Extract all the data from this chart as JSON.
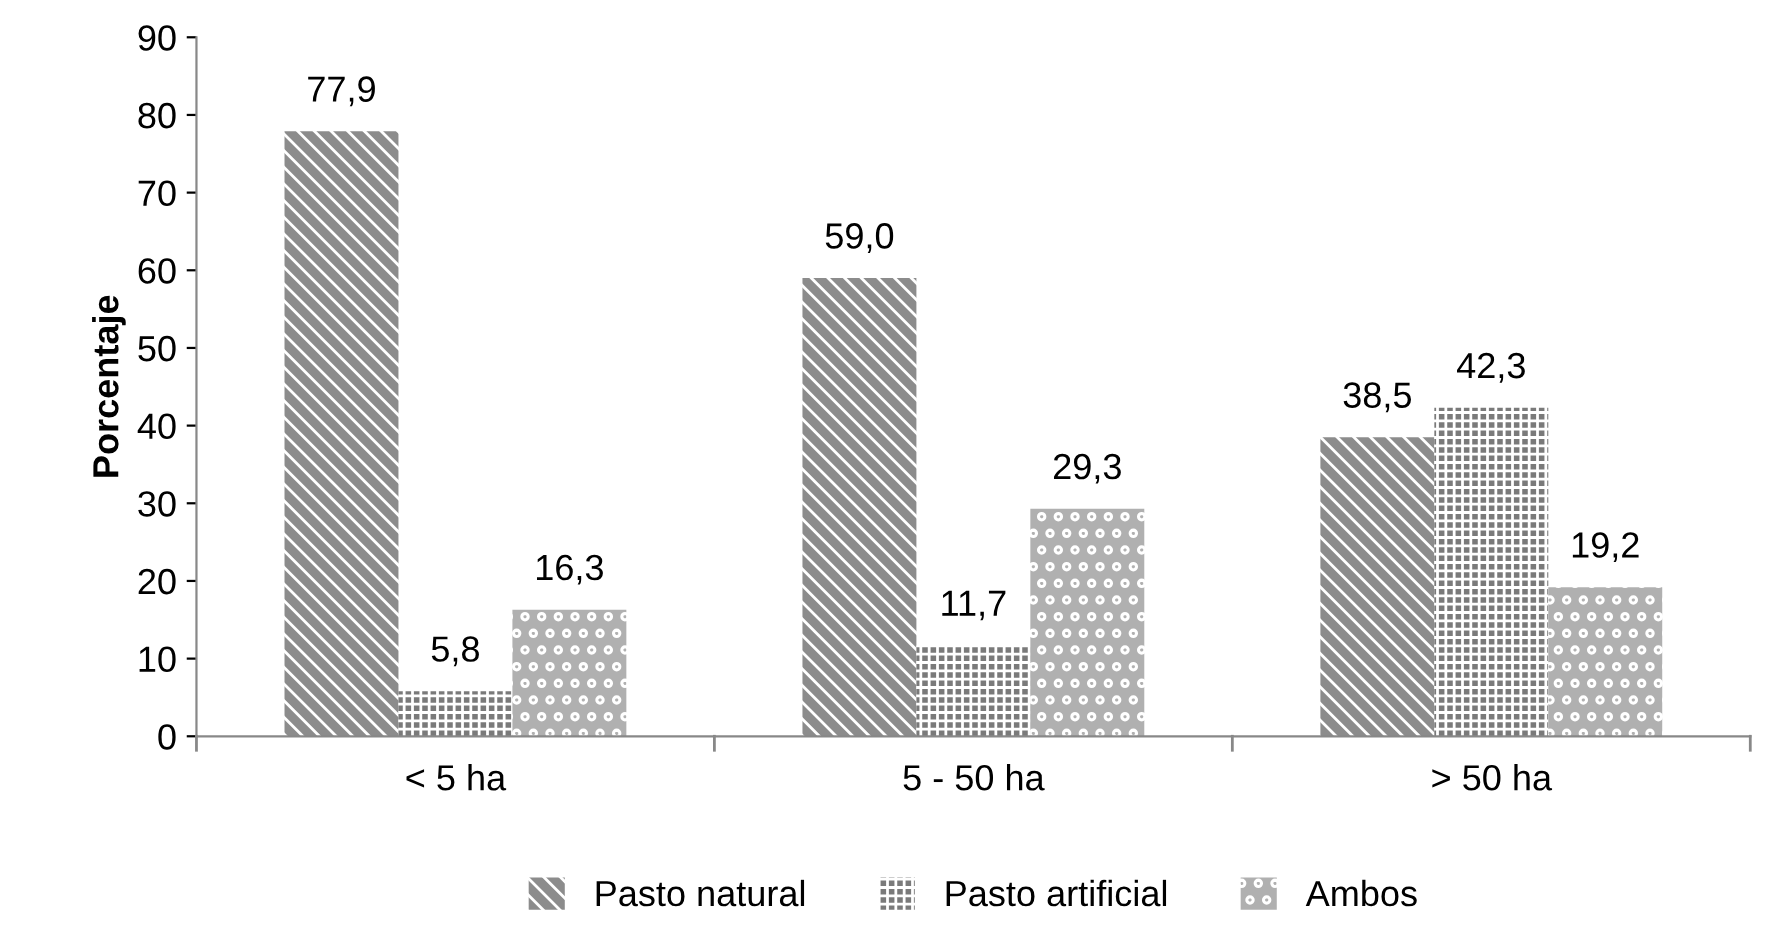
{
  "chart_data": {
    "type": "bar",
    "ylabel": "Porcentaje",
    "categories": [
      "< 5 ha",
      "5 - 50 ha",
      "> 50 ha"
    ],
    "series": [
      {
        "name": "Pasto natural",
        "color": "#8c8c8c",
        "values": [
          77.9,
          59.0,
          38.5
        ],
        "value_labels": [
          "77,9",
          "59,0",
          "38,5"
        ]
      },
      {
        "name": "Pasto artificial",
        "color": "#7a7a7a",
        "values": [
          5.8,
          11.7,
          42.3
        ],
        "value_labels": [
          "5,8",
          "11,7",
          "42,3"
        ]
      },
      {
        "name": "Ambos",
        "color": "#b0b0b0",
        "values": [
          16.3,
          29.3,
          19.2
        ],
        "value_labels": [
          "16,3",
          "29,3",
          "19,2"
        ]
      }
    ],
    "ylim": [
      0,
      90
    ],
    "yticks": [
      0,
      10,
      20,
      30,
      40,
      50,
      60,
      70,
      80,
      90
    ],
    "grid": false,
    "legend": "bottom"
  }
}
